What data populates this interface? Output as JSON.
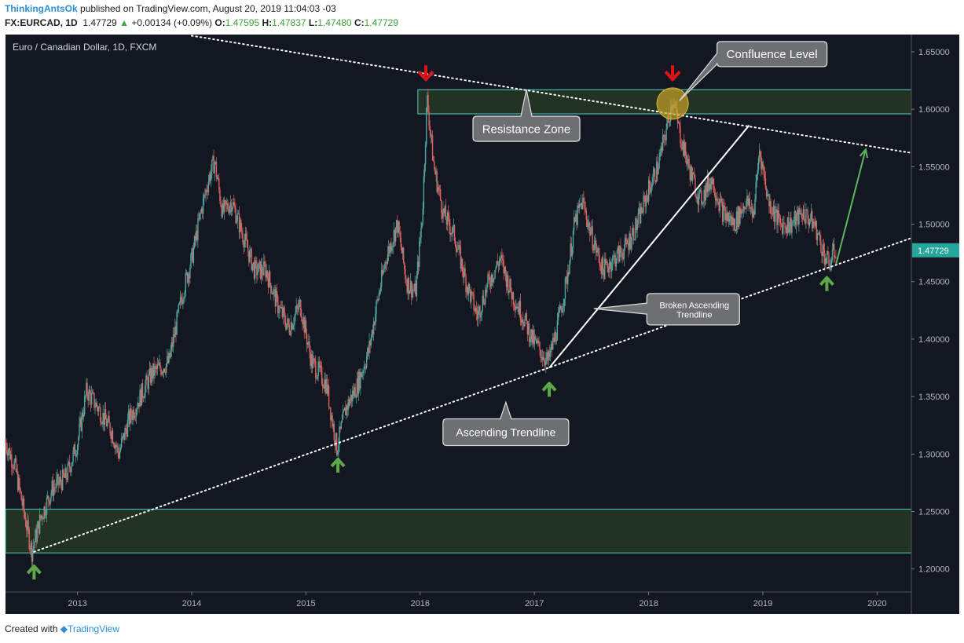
{
  "header": {
    "author": "ThinkingAntsOk",
    "published": "published on TradingView.com, August 20, 2019 11:04:03 -03",
    "symbol": "FX:EURCAD, 1D",
    "last": "1.47729",
    "change": "+0.00134 (+0.09%)",
    "o_label": "O:",
    "o_value": "1.47595",
    "h_label": "H:",
    "h_value": "1.47837",
    "l_label": "L:",
    "l_value": "1.47480",
    "c_label": "C:",
    "c_value": "1.47729"
  },
  "footer": {
    "created_with": "Created with",
    "brand": "TradingView"
  },
  "colors": {
    "background": "#131722",
    "up_candle": "#4fa8a0",
    "down_candle": "#e0625e",
    "zone_fill": "#233323",
    "zone_border": "#4fd1c5",
    "price_tag": "#26a69a",
    "arrow_up": "#5fa84a",
    "arrow_down": "#e0131b",
    "callout": "#6e6f72",
    "forecast_line": "#5fb55f",
    "confluence_circle": "#c9a227"
  },
  "chart_data": {
    "type": "candlestick",
    "title": "Euro / Canadian Dollar, 1D, FXCM",
    "timeframe": "1D",
    "ylim": [
      1.18,
      1.665
    ],
    "xlim": [
      2012.37,
      2020.3
    ],
    "y_ticks": [
      "1.65000",
      "1.60000",
      "1.55000",
      "1.50000",
      "1.45000",
      "1.40000",
      "1.35000",
      "1.30000",
      "1.25000",
      "1.20000"
    ],
    "x_ticks": [
      "2013",
      "2014",
      "2015",
      "2016",
      "2017",
      "2018",
      "2019",
      "2020"
    ],
    "current_price_label": "1.47729",
    "price_path": [
      [
        2012.37,
        1.31
      ],
      [
        2012.45,
        1.29
      ],
      [
        2012.53,
        1.25
      ],
      [
        2012.6,
        1.215
      ],
      [
        2012.68,
        1.245
      ],
      [
        2012.78,
        1.27
      ],
      [
        2012.9,
        1.28
      ],
      [
        2013.0,
        1.31
      ],
      [
        2013.08,
        1.355
      ],
      [
        2013.18,
        1.34
      ],
      [
        2013.3,
        1.32
      ],
      [
        2013.36,
        1.3
      ],
      [
        2013.45,
        1.33
      ],
      [
        2013.55,
        1.35
      ],
      [
        2013.65,
        1.37
      ],
      [
        2013.8,
        1.38
      ],
      [
        2013.92,
        1.44
      ],
      [
        2014.0,
        1.47
      ],
      [
        2014.08,
        1.51
      ],
      [
        2014.15,
        1.54
      ],
      [
        2014.2,
        1.555
      ],
      [
        2014.27,
        1.51
      ],
      [
        2014.35,
        1.52
      ],
      [
        2014.45,
        1.49
      ],
      [
        2014.55,
        1.46
      ],
      [
        2014.65,
        1.46
      ],
      [
        2014.75,
        1.43
      ],
      [
        2014.85,
        1.41
      ],
      [
        2014.95,
        1.43
      ],
      [
        2015.05,
        1.38
      ],
      [
        2015.12,
        1.37
      ],
      [
        2015.18,
        1.36
      ],
      [
        2015.27,
        1.305
      ],
      [
        2015.35,
        1.34
      ],
      [
        2015.45,
        1.36
      ],
      [
        2015.55,
        1.39
      ],
      [
        2015.62,
        1.43
      ],
      [
        2015.7,
        1.47
      ],
      [
        2015.8,
        1.5
      ],
      [
        2015.88,
        1.45
      ],
      [
        2015.96,
        1.44
      ],
      [
        2016.02,
        1.51
      ],
      [
        2016.06,
        1.61
      ],
      [
        2016.12,
        1.55
      ],
      [
        2016.2,
        1.51
      ],
      [
        2016.3,
        1.49
      ],
      [
        2016.4,
        1.45
      ],
      [
        2016.5,
        1.42
      ],
      [
        2016.6,
        1.45
      ],
      [
        2016.7,
        1.47
      ],
      [
        2016.8,
        1.44
      ],
      [
        2016.9,
        1.42
      ],
      [
        2016.98,
        1.4
      ],
      [
        2017.05,
        1.39
      ],
      [
        2017.12,
        1.38
      ],
      [
        2017.2,
        1.41
      ],
      [
        2017.28,
        1.45
      ],
      [
        2017.35,
        1.5
      ],
      [
        2017.42,
        1.52
      ],
      [
        2017.5,
        1.49
      ],
      [
        2017.6,
        1.46
      ],
      [
        2017.7,
        1.47
      ],
      [
        2017.8,
        1.48
      ],
      [
        2017.9,
        1.5
      ],
      [
        2018.0,
        1.53
      ],
      [
        2018.08,
        1.55
      ],
      [
        2018.15,
        1.58
      ],
      [
        2018.21,
        1.61
      ],
      [
        2018.27,
        1.58
      ],
      [
        2018.35,
        1.55
      ],
      [
        2018.45,
        1.52
      ],
      [
        2018.55,
        1.54
      ],
      [
        2018.65,
        1.51
      ],
      [
        2018.75,
        1.5
      ],
      [
        2018.85,
        1.52
      ],
      [
        2018.92,
        1.51
      ],
      [
        2018.97,
        1.565
      ],
      [
        2019.05,
        1.52
      ],
      [
        2019.15,
        1.5
      ],
      [
        2019.25,
        1.5
      ],
      [
        2019.35,
        1.51
      ],
      [
        2019.45,
        1.5
      ],
      [
        2019.55,
        1.47
      ],
      [
        2019.58,
        1.465
      ],
      [
        2019.62,
        1.475
      ],
      [
        2019.64,
        1.4773
      ]
    ],
    "resistance_zone": {
      "y_low": 1.596,
      "y_high": 1.617,
      "x_start": 2015.98
    },
    "support_zone": {
      "y_low": 1.214,
      "y_high": 1.252
    },
    "ascending_trendline": [
      [
        2012.62,
        1.215
      ],
      [
        2020.3,
        1.488
      ]
    ],
    "descending_trendline": [
      [
        2014.0,
        1.664
      ],
      [
        2020.3,
        1.562
      ]
    ],
    "broken_trendline": [
      [
        2017.13,
        1.375
      ],
      [
        2018.88,
        1.586
      ]
    ],
    "forecast_arrow": [
      [
        2019.64,
        1.465
      ],
      [
        2019.9,
        1.565
      ]
    ],
    "confluence_point": [
      2018.21,
      1.605
    ],
    "arrows_up": [
      [
        2012.62,
        1.197
      ],
      [
        2015.28,
        1.29
      ],
      [
        2017.13,
        1.356
      ],
      [
        2019.56,
        1.448
      ]
    ],
    "arrows_down": [
      [
        2016.05,
        1.63
      ],
      [
        2018.21,
        1.63
      ]
    ],
    "annotations": [
      {
        "text": "Resistance Zone",
        "x": 2016.93,
        "y": 1.583
      },
      {
        "text": "Confluence Level",
        "x": 2019.08,
        "y": 1.648
      },
      {
        "text": "Ascending Trendline",
        "x": 2016.75,
        "y": 1.319
      },
      {
        "text": "Broken Ascending",
        "x": 2018.4,
        "y": 1.4295
      },
      {
        "text": "Trendline",
        "x": 2018.4,
        "y": 1.4215
      }
    ]
  }
}
